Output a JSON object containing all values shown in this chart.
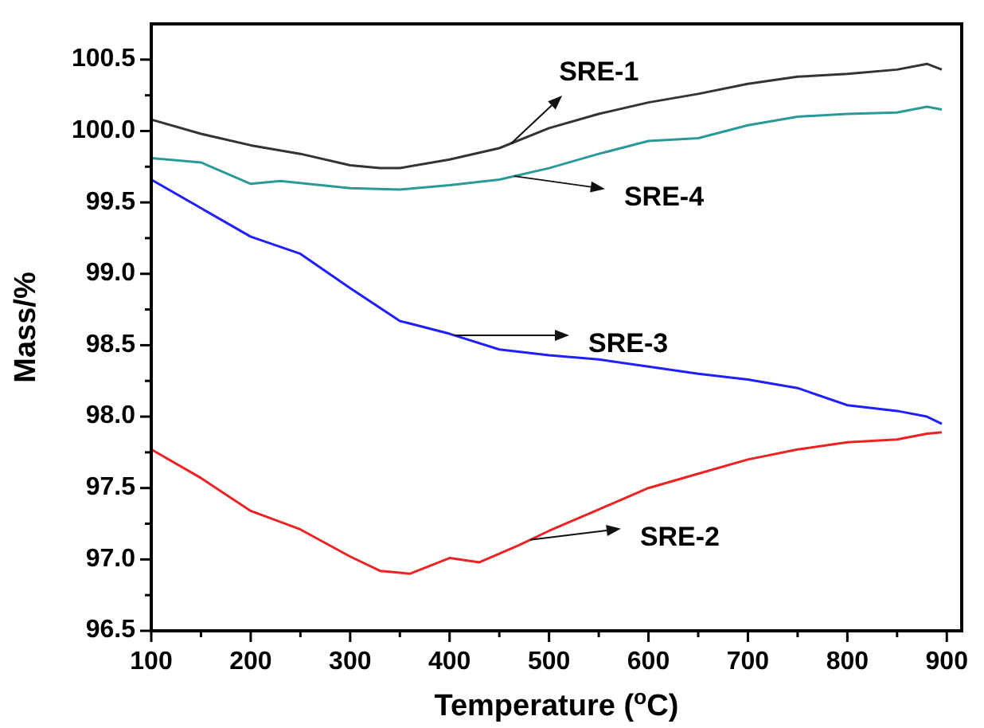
{
  "chart_data": {
    "type": "line",
    "xlabel": "Temperature ($^{o}$C)",
    "ylabel": "Mass/%",
    "xlim": [
      100,
      915
    ],
    "ylim": [
      96.5,
      100.75
    ],
    "xticks": [
      100,
      {
        "value": 150,
        "label": null
      },
      200,
      {
        "value": 250,
        "label": null
      },
      300,
      {
        "value": 350,
        "label": null
      },
      400,
      {
        "value": 450,
        "label": null
      },
      500,
      {
        "value": 550,
        "label": null
      },
      600,
      {
        "value": 650,
        "label": null
      },
      700,
      {
        "value": 750,
        "label": null
      },
      800,
      {
        "value": 850,
        "label": null
      },
      900
    ],
    "yticks": [
      96.5,
      {
        "value": 96.75,
        "label": null
      },
      {
        "value": 97,
        "label": "97.0"
      },
      {
        "value": 97.25,
        "label": null
      },
      97.5,
      {
        "value": 97.75,
        "label": null
      },
      {
        "value": 98,
        "label": "98.0"
      },
      {
        "value": 98.25,
        "label": null
      },
      98.5,
      {
        "value": 98.75,
        "label": null
      },
      {
        "value": 99,
        "label": "99.0"
      },
      {
        "value": 99.25,
        "label": null
      },
      99.5,
      {
        "value": 99.75,
        "label": null
      },
      {
        "value": 100,
        "label": "100.0"
      },
      {
        "value": 100.25,
        "label": null
      },
      100.5
    ],
    "grid": false,
    "marker": "none",
    "line_style": "solid",
    "series": [
      {
        "name": "SRE-1",
        "color": "#333333",
        "x": [
          100,
          150,
          200,
          250,
          300,
          330,
          350,
          400,
          450,
          500,
          550,
          600,
          650,
          700,
          750,
          800,
          850,
          880,
          895
        ],
        "values": [
          100.08,
          99.98,
          99.9,
          99.84,
          99.76,
          99.74,
          99.74,
          99.8,
          99.88,
          100.02,
          100.12,
          100.2,
          100.26,
          100.33,
          100.38,
          100.4,
          100.43,
          100.47,
          100.43
        ]
      },
      {
        "name": "SRE-4",
        "color": "#2a9a98",
        "x": [
          100,
          150,
          200,
          230,
          300,
          350,
          400,
          450,
          500,
          550,
          600,
          650,
          700,
          750,
          800,
          850,
          880,
          895
        ],
        "values": [
          99.81,
          99.78,
          99.63,
          99.65,
          99.6,
          99.59,
          99.62,
          99.66,
          99.74,
          99.84,
          99.93,
          99.95,
          100.04,
          100.1,
          100.12,
          100.13,
          100.17,
          100.15
        ]
      },
      {
        "name": "SRE-3",
        "color": "#1f1fff",
        "x": [
          100,
          150,
          200,
          250,
          300,
          350,
          400,
          450,
          500,
          550,
          600,
          650,
          700,
          750,
          800,
          850,
          880,
          895
        ],
        "values": [
          99.66,
          99.46,
          99.26,
          99.14,
          98.9,
          98.67,
          98.58,
          98.47,
          98.43,
          98.4,
          98.35,
          98.3,
          98.26,
          98.2,
          98.08,
          98.04,
          98.0,
          97.95
        ]
      },
      {
        "name": "SRE-2",
        "color": "#ee2222",
        "x": [
          100,
          150,
          200,
          250,
          300,
          330,
          360,
          400,
          430,
          470,
          500,
          550,
          600,
          650,
          700,
          750,
          800,
          850,
          880,
          895
        ],
        "values": [
          97.77,
          97.57,
          97.34,
          97.21,
          97.02,
          96.92,
          96.9,
          97.01,
          96.98,
          97.1,
          97.2,
          97.35,
          97.5,
          97.6,
          97.7,
          97.77,
          97.82,
          97.84,
          97.88,
          97.89
        ]
      }
    ]
  }
}
